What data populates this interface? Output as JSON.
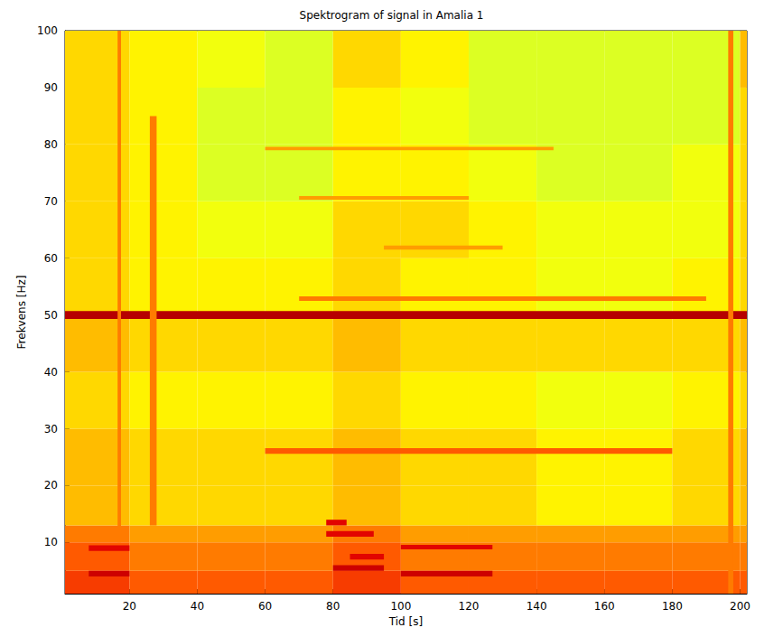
{
  "chart_data": {
    "type": "spectrogram",
    "title": "Spektrogram of signal in Amalia 1",
    "x_label": "Tid [s]",
    "y_label": "Frekvens [Hz]",
    "xlim": [
      1,
      202
    ],
    "xticks": [
      20,
      40,
      60,
      80,
      100,
      120,
      140,
      160,
      180,
      200
    ],
    "ylim": [
      1,
      100
    ],
    "yticks": [
      10,
      20,
      30,
      40,
      50,
      60,
      70,
      80,
      90,
      100
    ],
    "grid": false,
    "color_range": [
      0,
      10
    ],
    "colors": [
      "#00c0ff",
      "#40f0c0",
      "#c0ff40",
      "#ffff00",
      "#ffb000",
      "#ff5000",
      "#e00000",
      "#a00000"
    ],
    "time_edges": [
      1,
      20,
      40,
      60,
      80,
      100,
      120,
      140,
      160,
      180,
      200,
      202
    ],
    "freq_edges": [
      1,
      5,
      10,
      13,
      20,
      30,
      40,
      50,
      60,
      70,
      80,
      90,
      100
    ],
    "cells": [
      [
        7.5,
        7,
        7,
        7,
        7.5,
        7,
        7,
        7,
        7,
        7,
        7
      ],
      [
        7,
        6.5,
        6.5,
        6.5,
        7,
        6.5,
        6.5,
        6.5,
        6.5,
        6.5,
        6.5
      ],
      [
        6.5,
        6,
        6,
        6,
        6.5,
        6,
        6,
        6,
        6,
        6,
        6
      ],
      [
        5.5,
        5,
        5,
        5,
        5.5,
        5,
        5,
        4.5,
        4.5,
        5,
        5.5
      ],
      [
        5.5,
        5,
        5,
        5,
        5.5,
        5,
        5,
        4.5,
        4.5,
        5,
        5.5
      ],
      [
        5,
        4.5,
        4.5,
        4.5,
        5,
        4.5,
        4.5,
        4,
        4,
        4.5,
        5
      ],
      [
        5.5,
        5,
        5,
        5,
        5.5,
        5,
        5,
        5,
        5,
        5,
        5.5
      ],
      [
        5,
        4.5,
        4.5,
        4.5,
        5,
        4.5,
        4.5,
        4,
        4,
        4.5,
        5
      ],
      [
        5,
        4.5,
        4,
        4,
        5,
        5,
        4.5,
        4,
        4,
        4,
        5
      ],
      [
        5,
        4.5,
        3.5,
        3.5,
        4.5,
        4.5,
        4,
        3.5,
        3.5,
        4,
        5
      ],
      [
        5,
        4.5,
        3.5,
        3.5,
        4.5,
        4,
        3.5,
        3.5,
        3.5,
        3.5,
        5
      ],
      [
        5,
        4.5,
        4,
        3.5,
        5,
        4.5,
        3.5,
        3.5,
        3.5,
        3.5,
        5.5
      ]
    ],
    "bands": [
      {
        "t": [
          1,
          202
        ],
        "f": [
          49.3,
          50.7
        ],
        "value": 9.5
      },
      {
        "t": [
          60,
          180
        ],
        "f": [
          25.6,
          26.6
        ],
        "value": 7
      },
      {
        "t": [
          70,
          190
        ],
        "f": [
          52.5,
          53.3
        ],
        "value": 6.5
      },
      {
        "t": [
          60,
          145
        ],
        "f": [
          79,
          79.6
        ],
        "value": 6
      },
      {
        "t": [
          70,
          120
        ],
        "f": [
          70.3,
          70.9
        ],
        "value": 6
      },
      {
        "t": [
          95,
          130
        ],
        "f": [
          61.5,
          62.2
        ],
        "value": 6
      },
      {
        "t": [
          16.5,
          17.5
        ],
        "f": [
          10,
          100
        ],
        "value": 6.5
      },
      {
        "t": [
          26,
          28
        ],
        "f": [
          13,
          85
        ],
        "value": 6.5
      },
      {
        "t": [
          196.5,
          198
        ],
        "f": [
          1,
          100
        ],
        "value": 6.5
      },
      {
        "t": [
          8,
          20
        ],
        "f": [
          4,
          5
        ],
        "value": 9
      },
      {
        "t": [
          8,
          20
        ],
        "f": [
          8.5,
          9.5
        ],
        "value": 8.5
      },
      {
        "t": [
          100,
          127
        ],
        "f": [
          4,
          5
        ],
        "value": 9
      },
      {
        "t": [
          100,
          127
        ],
        "f": [
          8.8,
          9.6
        ],
        "value": 8.5
      },
      {
        "t": [
          80,
          95
        ],
        "f": [
          5,
          6
        ],
        "value": 9
      },
      {
        "t": [
          78,
          92
        ],
        "f": [
          11,
          12
        ],
        "value": 8.5
      },
      {
        "t": [
          78,
          84
        ],
        "f": [
          13,
          14
        ],
        "value": 8.5
      },
      {
        "t": [
          85,
          95
        ],
        "f": [
          7,
          8
        ],
        "value": 8.5
      }
    ]
  }
}
